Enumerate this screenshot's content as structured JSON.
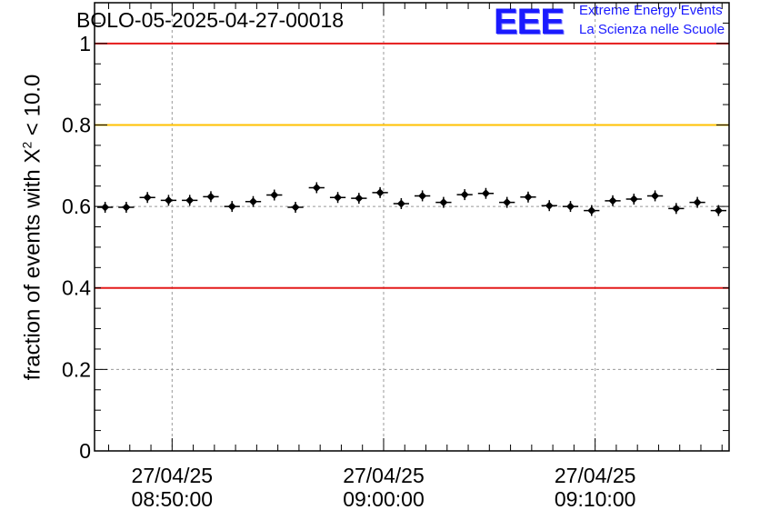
{
  "header": {
    "run_title": "BOLO-05-2025-04-27-00018",
    "logo_text": "EEE",
    "org_line1": "Extreme Energy Events",
    "org_line2": "La Scienza nelle Scuole"
  },
  "chart_data": {
    "type": "scatter",
    "title": "BOLO-05-2025-04-27-00018",
    "ylabel_parts": {
      "prefix": "fraction of events with ",
      "symbol": "X",
      "exponent": "2",
      "suffix": " < 10.0"
    },
    "x_tick_labels": [
      {
        "time": "08:50:00",
        "date": "27/04/25"
      },
      {
        "time": "09:00:00",
        "date": "27/04/25"
      },
      {
        "time": "09:10:00",
        "date": "27/04/25"
      }
    ],
    "x_axis_time_range": [
      "08:46:20",
      "09:16:20"
    ],
    "yticks": [
      0,
      0.2,
      0.4,
      0.6,
      0.8,
      1
    ],
    "ytick_labels": [
      "0",
      "0.2",
      "0.4",
      "0.6",
      "0.8",
      "1"
    ],
    "ylim": [
      0,
      1.1
    ],
    "grid": true,
    "reference_lines": [
      {
        "value": 1.0,
        "color": "#e41a1a"
      },
      {
        "value": 0.8,
        "color": "#ffc000"
      },
      {
        "value": 0.4,
        "color": "#e41a1a"
      }
    ],
    "bin_width_seconds": 60,
    "points": [
      {
        "t": "08:46:50",
        "y": 0.598
      },
      {
        "t": "08:47:50",
        "y": 0.598
      },
      {
        "t": "08:48:50",
        "y": 0.622
      },
      {
        "t": "08:49:50",
        "y": 0.615
      },
      {
        "t": "08:50:50",
        "y": 0.615
      },
      {
        "t": "08:51:50",
        "y": 0.624
      },
      {
        "t": "08:52:50",
        "y": 0.6
      },
      {
        "t": "08:53:50",
        "y": 0.612
      },
      {
        "t": "08:54:50",
        "y": 0.628
      },
      {
        "t": "08:55:50",
        "y": 0.598
      },
      {
        "t": "08:56:50",
        "y": 0.646
      },
      {
        "t": "08:57:50",
        "y": 0.622
      },
      {
        "t": "08:58:50",
        "y": 0.62
      },
      {
        "t": "08:59:50",
        "y": 0.634
      },
      {
        "t": "09:00:50",
        "y": 0.607
      },
      {
        "t": "09:01:50",
        "y": 0.626
      },
      {
        "t": "09:02:50",
        "y": 0.61
      },
      {
        "t": "09:03:50",
        "y": 0.629
      },
      {
        "t": "09:04:50",
        "y": 0.632
      },
      {
        "t": "09:05:50",
        "y": 0.61
      },
      {
        "t": "09:06:50",
        "y": 0.623
      },
      {
        "t": "09:07:50",
        "y": 0.602
      },
      {
        "t": "09:08:50",
        "y": 0.6
      },
      {
        "t": "09:09:50",
        "y": 0.59
      },
      {
        "t": "09:10:50",
        "y": 0.614
      },
      {
        "t": "09:11:50",
        "y": 0.618
      },
      {
        "t": "09:12:50",
        "y": 0.626
      },
      {
        "t": "09:13:50",
        "y": 0.595
      },
      {
        "t": "09:14:50",
        "y": 0.61
      },
      {
        "t": "09:15:50",
        "y": 0.59
      }
    ]
  }
}
